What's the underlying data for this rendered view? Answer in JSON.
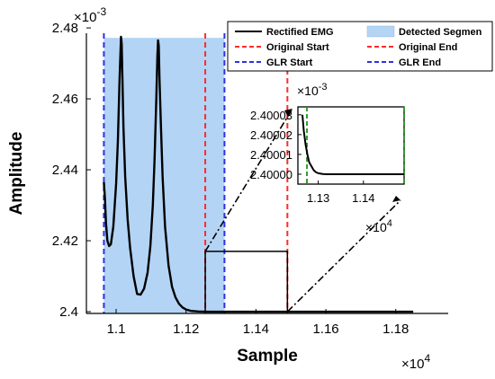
{
  "chart_data": {
    "type": "line",
    "main": {
      "xlabel": "Sample",
      "ylabel": "Amplitude",
      "x_multiplier": "×10",
      "x_exponent": "4",
      "y_multiplier": "×10",
      "y_exponent": "-3",
      "xlim": [
        1.0915,
        1.195
      ],
      "ylim": [
        2.3995,
        2.4785
      ],
      "xticks": [
        1.1,
        1.12,
        1.14,
        1.16,
        1.18
      ],
      "xtick_labels": [
        "1.1",
        "1.12",
        "1.14",
        "1.16",
        "1.18"
      ],
      "yticks": [
        2.4,
        2.42,
        2.44,
        2.46,
        2.48
      ],
      "ytick_labels": [
        "2.4",
        "2.42",
        "2.44",
        "2.46",
        "2.48"
      ],
      "detected_segment": [
        1.0965,
        1.131
      ],
      "original_start": 1.1255,
      "original_end": 1.149,
      "glr_start": 1.0965,
      "glr_end": 1.131,
      "zoom_box": {
        "x": [
          1.1255,
          1.149
        ],
        "y": [
          2.4,
          2.417
        ]
      },
      "series": [
        {
          "name": "Rectified EMG",
          "x": [
            1.0965,
            1.0968,
            1.0971,
            1.0975,
            1.098,
            1.0985,
            1.0992,
            1.1,
            1.1005,
            1.101,
            1.1014,
            1.1016,
            1.1018,
            1.1021,
            1.1026,
            1.1033,
            1.104,
            1.105,
            1.106,
            1.107,
            1.108,
            1.109,
            1.1098,
            1.1105,
            1.111,
            1.1115,
            1.1118,
            1.112,
            1.1122,
            1.1124,
            1.1128,
            1.1133,
            1.114,
            1.115,
            1.116,
            1.117,
            1.118,
            1.119,
            1.12,
            1.1215,
            1.1235,
            1.126,
            1.13,
            1.14,
            1.16,
            1.185
          ],
          "y": [
            2.4365,
            2.432,
            2.425,
            2.42,
            2.4185,
            2.419,
            2.424,
            2.436,
            2.448,
            2.466,
            2.4775,
            2.4755,
            2.466,
            2.452,
            2.438,
            2.426,
            2.418,
            2.41,
            2.405,
            2.4048,
            2.4065,
            2.411,
            2.4185,
            2.43,
            2.443,
            2.46,
            2.472,
            2.4765,
            2.475,
            2.466,
            2.453,
            2.438,
            2.424,
            2.413,
            2.407,
            2.404,
            2.4022,
            2.4012,
            2.4006,
            2.4002,
            2.40005,
            2.4,
            2.4,
            2.4,
            2.4,
            2.4
          ]
        }
      ]
    },
    "inset": {
      "x_multiplier": "×10",
      "x_exponent": "4",
      "y_multiplier": "×10",
      "y_exponent": "-3",
      "xlim": [
        1.1255,
        1.149
      ],
      "ylim": [
        2.399995,
        2.400034
      ],
      "xticks": [
        1.13,
        1.14
      ],
      "xtick_labels": [
        "1.13",
        "1.14"
      ],
      "yticks": [
        2.4,
        2.40001,
        2.40002,
        2.40003
      ],
      "ytick_labels": [
        "2.40000",
        "2.40001",
        "2.40002",
        "2.40003"
      ],
      "green_lines": [
        1.1275,
        1.149
      ],
      "series": [
        {
          "name": "Rectified EMG",
          "x": [
            1.1265,
            1.1268,
            1.1272,
            1.1276,
            1.128,
            1.1285,
            1.129,
            1.1295,
            1.13,
            1.131,
            1.132,
            1.135,
            1.14,
            1.149
          ],
          "y": [
            2.40003,
            2.400022,
            2.400015,
            2.40001,
            2.400006,
            2.400004,
            2.400002,
            2.400001,
            2.4000005,
            2.4000001,
            2.4,
            2.4,
            2.4,
            2.4
          ]
        }
      ]
    },
    "legend": {
      "position": "top-right",
      "entries": [
        {
          "label": "Rectified EMG",
          "color": "#000000",
          "style": "solid"
        },
        {
          "label": "Detected Segmen",
          "color": "#b3d4f5",
          "style": "patch"
        },
        {
          "label": "Original Start",
          "color": "#ff2b2b",
          "style": "dashed"
        },
        {
          "label": "Original End",
          "color": "#ff2b2b",
          "style": "dashed"
        },
        {
          "label": "GLR Start",
          "color": "#3030e0",
          "style": "dashed"
        },
        {
          "label": "GLR End",
          "color": "#3030e0",
          "style": "dashed"
        }
      ]
    },
    "colors": {
      "signal": "#000000",
      "segment_fill": "#b3d4f5",
      "original": "#ff2b2b",
      "glr": "#3030e0",
      "inset_marker": "#2e9e2e"
    }
  }
}
